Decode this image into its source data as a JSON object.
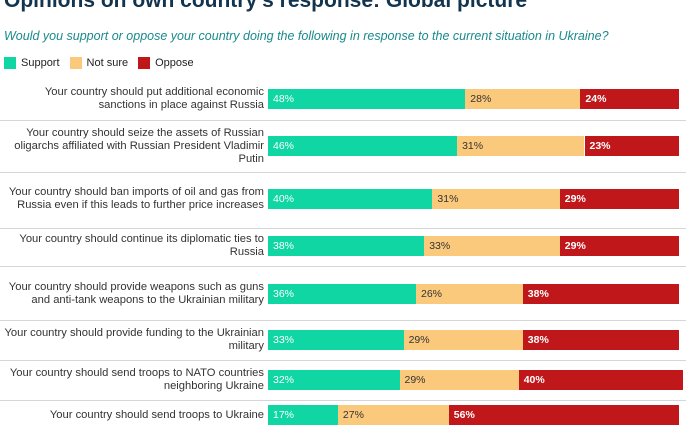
{
  "title": "Opinions on own country's response: Global picture",
  "subtitle": "Would you support or oppose your country doing the following in response to the current situation in Ukraine?",
  "legend": [
    {
      "key": "support",
      "label": "Support",
      "color": "#0fd6a3"
    },
    {
      "key": "not_sure",
      "label": "Not sure",
      "color": "#fbc97b"
    },
    {
      "key": "oppose",
      "label": "Oppose",
      "color": "#c0171b"
    }
  ],
  "chart_data": {
    "type": "bar",
    "orientation": "horizontal",
    "stacked": true,
    "title": "Opinions on own country's response: Global picture",
    "subtitle": "Would you support or oppose your country doing the following in response to the current situation in Ukraine?",
    "unit": "%",
    "xlim": [
      0,
      100
    ],
    "legend_position": "top-left",
    "categories": [
      "Your country should put additional economic sanctions in place against Russia",
      "Your country should seize the assets of Russian oligarchs affiliated with Russian President Vladimir Putin",
      "Your country should ban imports of oil and gas from Russia even if this leads to further price increases",
      "Your country should continue its diplomatic ties to Russia",
      "Your country should provide weapons such as guns and anti-tank weapons to the Ukrainian military",
      "Your country should provide funding to the Ukrainian military",
      "Your country should send troops to NATO countries neighboring Ukraine",
      "Your country should send troops to Ukraine"
    ],
    "series": [
      {
        "name": "Support",
        "values": [
          48,
          46,
          40,
          38,
          36,
          33,
          32,
          17
        ]
      },
      {
        "name": "Not sure",
        "values": [
          28,
          31,
          31,
          33,
          26,
          29,
          29,
          27
        ]
      },
      {
        "name": "Oppose",
        "values": [
          24,
          23,
          29,
          29,
          38,
          38,
          40,
          56
        ]
      }
    ]
  }
}
